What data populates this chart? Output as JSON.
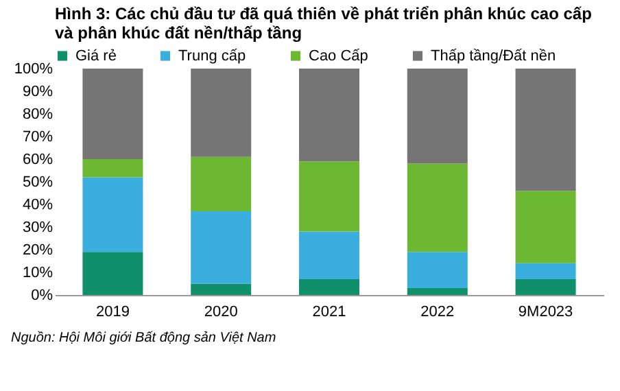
{
  "chart_data": {
    "type": "bar",
    "stacked": true,
    "title": "Hình 3: Các chủ đầu tư đã quá thiên về phát triển phân khúc cao cấp và phân khúc đất nền/thấp tầng",
    "categories": [
      "2019",
      "2020",
      "2021",
      "2022",
      "9M2023"
    ],
    "series": [
      {
        "name": "Giá rẻ",
        "color": "#0f8f6a",
        "values": [
          19,
          5,
          7,
          3,
          7
        ]
      },
      {
        "name": "Trung cấp",
        "color": "#3aaedc",
        "values": [
          33,
          32,
          21,
          16,
          7
        ]
      },
      {
        "name": "Cao Cấp",
        "color": "#6cb833",
        "values": [
          8,
          24,
          31,
          39,
          32
        ]
      },
      {
        "name": "Thấp tầng/Đất nền",
        "color": "#757575",
        "values": [
          40,
          39,
          41,
          42,
          54
        ]
      }
    ],
    "ylim": [
      0,
      100
    ],
    "yticks": [
      {
        "value": 0,
        "label": "0%"
      },
      {
        "value": 10,
        "label": "10%"
      },
      {
        "value": 20,
        "label": "20%"
      },
      {
        "value": 30,
        "label": "30%"
      },
      {
        "value": 40,
        "label": "40%"
      },
      {
        "value": 50,
        "label": "50%"
      },
      {
        "value": 60,
        "label": "60%"
      },
      {
        "value": 70,
        "label": "70%"
      },
      {
        "value": 80,
        "label": "80%"
      },
      {
        "value": 90,
        "label": "90%"
      },
      {
        "value": 100,
        "label": "100%"
      }
    ],
    "grid": false,
    "legend": "top",
    "annotations": [
      "Nguồn: Hội Môi giới Bất động sản Việt Nam"
    ]
  }
}
